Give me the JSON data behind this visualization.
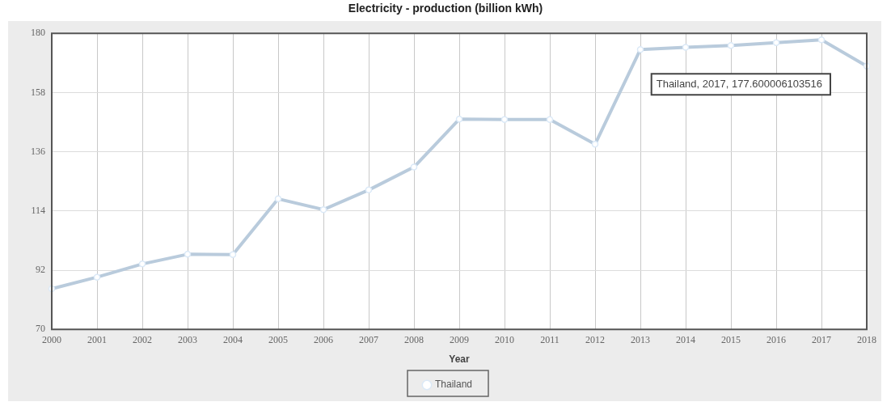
{
  "chart_data": {
    "type": "line",
    "title": "Electricity - production (billion kWh)",
    "xlabel": "Year",
    "categories": [
      "2000",
      "2001",
      "2002",
      "2003",
      "2004",
      "2005",
      "2006",
      "2007",
      "2008",
      "2009",
      "2010",
      "2011",
      "2012",
      "2013",
      "2014",
      "2015",
      "2016",
      "2017",
      "2018"
    ],
    "series": [
      {
        "name": "Thailand",
        "color": "#b9cbdc",
        "values": [
          85.1,
          89.4,
          94.3,
          97.9,
          97.8,
          118.5,
          114.5,
          121.8,
          130.3,
          148.1,
          148,
          148,
          138.8,
          174,
          174.8,
          175.5,
          176.5,
          177.6,
          167.8
        ]
      }
    ],
    "ylim": [
      70,
      180
    ],
    "yticks": [
      70,
      92,
      114,
      136,
      158,
      180
    ],
    "annotations": [
      "Thailand, 2017, 177.600006103516"
    ],
    "grid": true,
    "legend": "bottom",
    "marker": "circle",
    "line_style": "solid"
  }
}
